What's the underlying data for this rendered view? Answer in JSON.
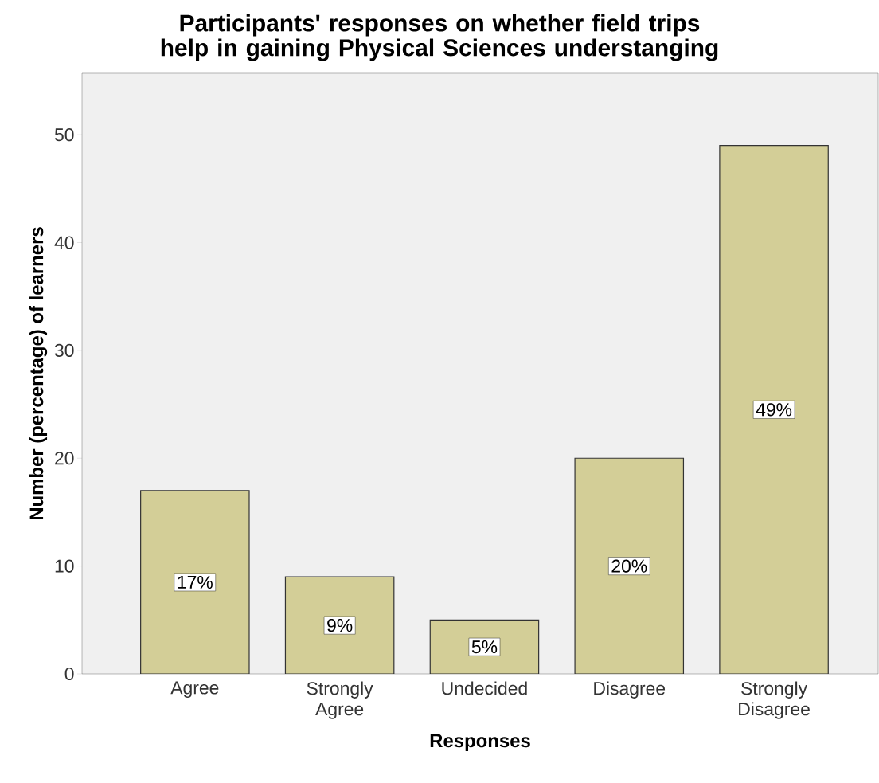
{
  "chart_data": {
    "type": "bar",
    "title": "Participants' responses on whether field trips help in gaining Physical Sciences understanging",
    "xlabel": "Responses",
    "ylabel": "Number (percentage) of learners",
    "categories": [
      "Agree",
      "Strongly Agree",
      "Undecided",
      "Disagree",
      "Strongly Disagree"
    ],
    "values": [
      17,
      9,
      5,
      20,
      49
    ],
    "color": "#d3ce97",
    "value_labels": [
      "17%",
      "9%",
      "5%",
      "20%",
      "49%"
    ],
    "ylim": [
      0,
      55.7
    ],
    "yticks": [
      0,
      10,
      20,
      30,
      40,
      50
    ]
  }
}
